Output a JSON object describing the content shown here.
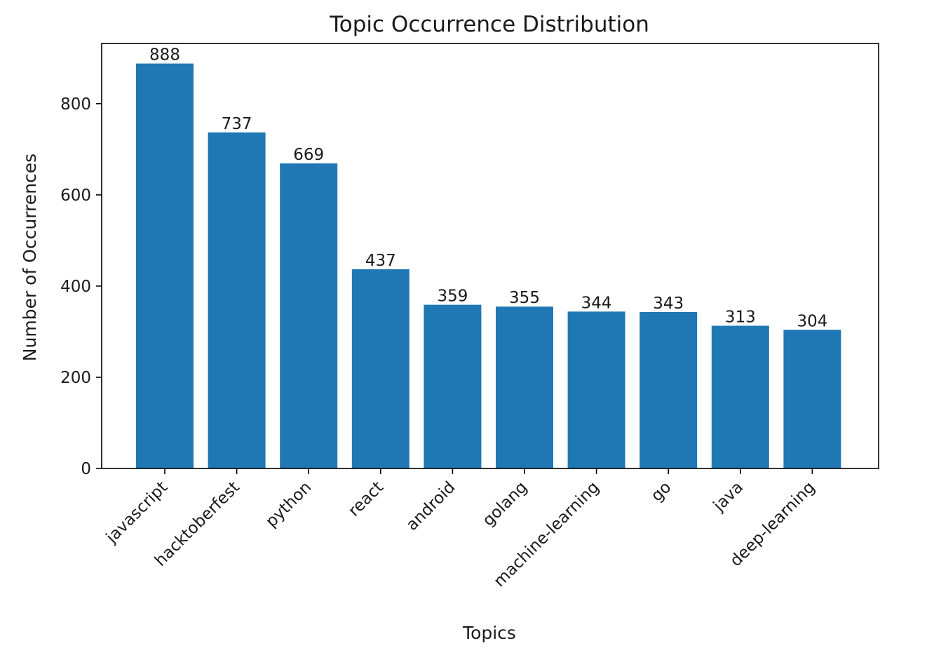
{
  "chart_data": {
    "type": "bar",
    "title": "Topic Occurrence Distribution",
    "xlabel": "Topics",
    "ylabel": "Number of Occurrences",
    "categories": [
      "javascript",
      "hacktoberfest",
      "python",
      "react",
      "android",
      "golang",
      "machine-learning",
      "go",
      "java",
      "deep-learning"
    ],
    "values": [
      888,
      737,
      669,
      437,
      359,
      355,
      344,
      343,
      313,
      304
    ],
    "data_labels": [
      "888",
      "737",
      "669",
      "437",
      "359",
      "355",
      "344",
      "343",
      "313",
      "304"
    ],
    "ylim": [
      0,
      932
    ],
    "yticks": [
      0,
      200,
      400,
      600,
      800
    ],
    "ytick_labels": [
      "0",
      "200",
      "400",
      "600",
      "800"
    ],
    "bar_color": "#1f77b4",
    "grid": false,
    "legend": "none"
  }
}
